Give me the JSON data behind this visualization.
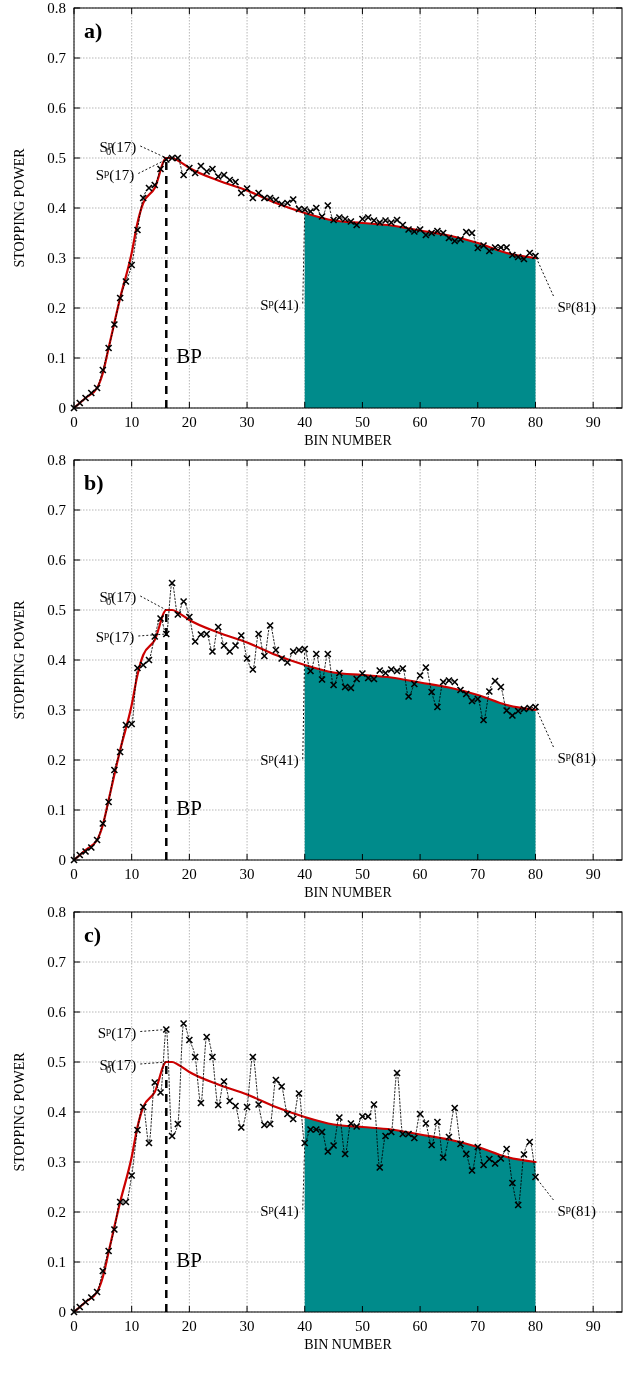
{
  "chart_data": [
    {
      "type": "line",
      "title": "a)",
      "xlabel": "BIN NUMBER",
      "ylabel": "STOPPING POWER",
      "xlim": [
        0,
        95
      ],
      "xticks": [
        0,
        10,
        20,
        30,
        40,
        50,
        60,
        70,
        80,
        90
      ],
      "ylim": [
        0,
        0.8
      ],
      "yticks": [
        0,
        0.1,
        0.2,
        0.3,
        0.4,
        0.5,
        0.6,
        0.7,
        0.8
      ],
      "grid": true,
      "series": [
        {
          "type": "area",
          "color": "#008b8b",
          "x": [
            40,
            45,
            50,
            55,
            60,
            65,
            70,
            75,
            80
          ],
          "values": [
            0.39,
            0.375,
            0.37,
            0.365,
            0.355,
            0.345,
            0.33,
            0.31,
            0.3
          ]
        },
        {
          "type": "line",
          "color": "#cc0000",
          "line_style": "solid",
          "marker": "none",
          "x": [
            0,
            2,
            4,
            5,
            6,
            8,
            10,
            11,
            12,
            14,
            16,
            17,
            18,
            20,
            25,
            30,
            35,
            40,
            45,
            50,
            55,
            60,
            65,
            70,
            75,
            80
          ],
          "values": [
            0,
            0.02,
            0.04,
            0.07,
            0.12,
            0.22,
            0.31,
            0.37,
            0.41,
            0.44,
            0.5,
            0.5,
            0.495,
            0.48,
            0.455,
            0.435,
            0.41,
            0.39,
            0.375,
            0.37,
            0.365,
            0.355,
            0.345,
            0.33,
            0.31,
            0.3
          ]
        },
        {
          "type": "line",
          "color": "#000000",
          "line_style": "dotted",
          "marker": "cross",
          "x": [
            0,
            1,
            2,
            3,
            4,
            5,
            6,
            7,
            8,
            9,
            10,
            11,
            12,
            13,
            14,
            15,
            16,
            17,
            18,
            19,
            20,
            21,
            22,
            23,
            24,
            25,
            26,
            27,
            28,
            29,
            30,
            31,
            32,
            33,
            34,
            35,
            36,
            37,
            38,
            39,
            40,
            41,
            42,
            43,
            44,
            45,
            46,
            47,
            48,
            49,
            50,
            51,
            52,
            53,
            54,
            55,
            56,
            57,
            58,
            59,
            60,
            61,
            62,
            63,
            64,
            65,
            66,
            67,
            68,
            69,
            70,
            71,
            72,
            73,
            74,
            75,
            76,
            77,
            78,
            79,
            80
          ],
          "values": [
            0,
            0.01,
            0.02,
            0.03,
            0.04,
            0.076,
            0.12,
            0.167,
            0.22,
            0.253,
            0.286,
            0.356,
            0.42,
            0.44,
            0.446,
            0.478,
            0.497,
            0.5,
            0.5,
            0.466,
            0.48,
            0.47,
            0.484,
            0.473,
            0.478,
            0.463,
            0.466,
            0.456,
            0.452,
            0.43,
            0.439,
            0.42,
            0.43,
            0.42,
            0.42,
            0.416,
            0.408,
            0.41,
            0.417,
            0.398,
            0.397,
            0.393,
            0.4,
            0.383,
            0.405,
            0.376,
            0.381,
            0.378,
            0.373,
            0.366,
            0.378,
            0.381,
            0.375,
            0.371,
            0.375,
            0.371,
            0.376,
            0.366,
            0.357,
            0.353,
            0.357,
            0.346,
            0.35,
            0.354,
            0.35,
            0.34,
            0.334,
            0.337,
            0.352,
            0.35,
            0.32,
            0.325,
            0.314,
            0.321,
            0.321,
            0.321,
            0.306,
            0.302,
            0.298,
            0.31,
            0.304
          ]
        }
      ],
      "ref_lines": [
        {
          "axis": "x",
          "value": 16,
          "label": "BP",
          "line_style": "dashed",
          "color": "#000000"
        }
      ],
      "annotations": [
        {
          "text": "S$^{p}$$_{0}$(17)",
          "x": 16,
          "y": 0.5
        },
        {
          "text": "S$^{p}$(17)",
          "x": 16,
          "y": 0.497
        },
        {
          "text": "S$^{p}$(41)",
          "x": 40,
          "y": 0.397
        },
        {
          "text": "S$^{p}$(81)",
          "x": 80,
          "y": 0.304
        }
      ]
    },
    {
      "type": "line",
      "title": "b)",
      "xlabel": "BIN NUMBER",
      "ylabel": "STOPPING POWER",
      "xlim": [
        0,
        95
      ],
      "xticks": [
        0,
        10,
        20,
        30,
        40,
        50,
        60,
        70,
        80,
        90
      ],
      "ylim": [
        0,
        0.8
      ],
      "yticks": [
        0,
        0.1,
        0.2,
        0.3,
        0.4,
        0.5,
        0.6,
        0.7,
        0.8
      ],
      "grid": true,
      "series": [
        {
          "type": "area",
          "color": "#008b8b",
          "x": [
            40,
            45,
            50,
            55,
            60,
            65,
            70,
            75,
            80
          ],
          "values": [
            0.39,
            0.375,
            0.37,
            0.365,
            0.355,
            0.345,
            0.33,
            0.31,
            0.3
          ]
        },
        {
          "type": "line",
          "color": "#cc0000",
          "line_style": "solid",
          "marker": "none",
          "x": [
            0,
            2,
            4,
            5,
            6,
            8,
            10,
            11,
            12,
            14,
            16,
            17,
            18,
            20,
            25,
            30,
            35,
            40,
            45,
            50,
            55,
            60,
            65,
            70,
            75,
            80
          ],
          "values": [
            0,
            0.02,
            0.04,
            0.07,
            0.12,
            0.22,
            0.31,
            0.37,
            0.41,
            0.44,
            0.5,
            0.5,
            0.495,
            0.48,
            0.455,
            0.435,
            0.41,
            0.39,
            0.375,
            0.37,
            0.365,
            0.355,
            0.345,
            0.33,
            0.31,
            0.3
          ]
        },
        {
          "type": "line",
          "color": "#000000",
          "line_style": "dotted",
          "marker": "cross",
          "x": [
            0,
            1,
            2,
            3,
            4,
            5,
            6,
            7,
            8,
            9,
            10,
            11,
            12,
            13,
            14,
            15,
            16,
            17,
            18,
            19,
            20,
            21,
            22,
            23,
            24,
            25,
            26,
            27,
            28,
            29,
            30,
            31,
            32,
            33,
            34,
            35,
            36,
            37,
            38,
            39,
            40,
            41,
            42,
            43,
            44,
            45,
            46,
            47,
            48,
            49,
            50,
            51,
            52,
            53,
            54,
            55,
            56,
            57,
            58,
            59,
            60,
            61,
            62,
            63,
            64,
            65,
            66,
            67,
            68,
            69,
            70,
            71,
            72,
            73,
            74,
            75,
            76,
            77,
            78,
            79,
            80
          ],
          "values": [
            0,
            0.01,
            0.017,
            0.025,
            0.04,
            0.073,
            0.116,
            0.18,
            0.216,
            0.27,
            0.272,
            0.384,
            0.39,
            0.4,
            0.447,
            0.483,
            0.452,
            0.554,
            0.491,
            0.517,
            0.486,
            0.437,
            0.451,
            0.452,
            0.417,
            0.466,
            0.429,
            0.417,
            0.429,
            0.449,
            0.403,
            0.381,
            0.452,
            0.408,
            0.469,
            0.42,
            0.403,
            0.395,
            0.417,
            0.42,
            0.422,
            0.378,
            0.412,
            0.361,
            0.412,
            0.35,
            0.374,
            0.346,
            0.344,
            0.362,
            0.373,
            0.364,
            0.362,
            0.379,
            0.374,
            0.381,
            0.378,
            0.383,
            0.327,
            0.352,
            0.369,
            0.385,
            0.336,
            0.306,
            0.356,
            0.359,
            0.356,
            0.34,
            0.332,
            0.318,
            0.322,
            0.28,
            0.337,
            0.358,
            0.346,
            0.299,
            0.289,
            0.298,
            0.302,
            0.304,
            0.306
          ]
        }
      ],
      "ref_lines": [
        {
          "axis": "x",
          "value": 16,
          "label": "BP",
          "line_style": "dashed",
          "color": "#000000"
        }
      ],
      "annotations": [
        {
          "text": "S$^{p}$$_{0}$(17)",
          "x": 16,
          "y": 0.5
        },
        {
          "text": "S$^{p}$(17)",
          "x": 16,
          "y": 0.452
        },
        {
          "text": "S$^{p}$(41)",
          "x": 40,
          "y": 0.422
        },
        {
          "text": "S$^{p}$(81)",
          "x": 80,
          "y": 0.306
        }
      ]
    },
    {
      "type": "line",
      "title": "c)",
      "xlabel": "BIN NUMBER",
      "ylabel": "STOPPING POWER",
      "xlim": [
        0,
        95
      ],
      "xticks": [
        0,
        10,
        20,
        30,
        40,
        50,
        60,
        70,
        80,
        90
      ],
      "ylim": [
        0,
        0.8
      ],
      "yticks": [
        0,
        0.1,
        0.2,
        0.3,
        0.4,
        0.5,
        0.6,
        0.7,
        0.8
      ],
      "grid": true,
      "series": [
        {
          "type": "area",
          "color": "#008b8b",
          "x": [
            40,
            45,
            50,
            55,
            60,
            65,
            70,
            75,
            80
          ],
          "values": [
            0.39,
            0.375,
            0.37,
            0.365,
            0.355,
            0.345,
            0.33,
            0.31,
            0.3
          ]
        },
        {
          "type": "line",
          "color": "#cc0000",
          "line_style": "solid",
          "marker": "none",
          "x": [
            0,
            2,
            4,
            5,
            6,
            8,
            10,
            11,
            12,
            14,
            16,
            17,
            18,
            20,
            25,
            30,
            35,
            40,
            45,
            50,
            55,
            60,
            65,
            70,
            75,
            80
          ],
          "values": [
            0,
            0.02,
            0.04,
            0.07,
            0.12,
            0.22,
            0.31,
            0.37,
            0.41,
            0.44,
            0.5,
            0.5,
            0.495,
            0.48,
            0.455,
            0.435,
            0.41,
            0.39,
            0.375,
            0.37,
            0.365,
            0.355,
            0.345,
            0.33,
            0.31,
            0.3
          ]
        },
        {
          "type": "line",
          "color": "#000000",
          "line_style": "dotted",
          "marker": "cross",
          "x": [
            0,
            1,
            2,
            3,
            4,
            5,
            6,
            7,
            8,
            9,
            10,
            11,
            12,
            13,
            14,
            15,
            16,
            17,
            18,
            19,
            20,
            21,
            22,
            23,
            24,
            25,
            26,
            27,
            28,
            29,
            30,
            31,
            32,
            33,
            34,
            35,
            36,
            37,
            38,
            39,
            40,
            41,
            42,
            43,
            44,
            45,
            46,
            47,
            48,
            49,
            50,
            51,
            52,
            53,
            54,
            55,
            56,
            57,
            58,
            59,
            60,
            61,
            62,
            63,
            64,
            65,
            66,
            67,
            68,
            69,
            70,
            71,
            72,
            73,
            74,
            75,
            76,
            77,
            78,
            79,
            80
          ],
          "values": [
            0,
            0.01,
            0.02,
            0.029,
            0.04,
            0.082,
            0.122,
            0.165,
            0.22,
            0.22,
            0.273,
            0.364,
            0.41,
            0.338,
            0.459,
            0.439,
            0.565,
            0.352,
            0.376,
            0.577,
            0.544,
            0.51,
            0.418,
            0.55,
            0.51,
            0.414,
            0.461,
            0.422,
            0.412,
            0.369,
            0.41,
            0.51,
            0.415,
            0.374,
            0.376,
            0.464,
            0.451,
            0.396,
            0.386,
            0.437,
            0.338,
            0.365,
            0.365,
            0.36,
            0.321,
            0.333,
            0.389,
            0.316,
            0.377,
            0.371,
            0.391,
            0.391,
            0.415,
            0.289,
            0.352,
            0.36,
            0.478,
            0.356,
            0.356,
            0.348,
            0.396,
            0.377,
            0.334,
            0.38,
            0.309,
            0.35,
            0.408,
            0.336,
            0.316,
            0.283,
            0.33,
            0.294,
            0.306,
            0.297,
            0.307,
            0.326,
            0.258,
            0.214,
            0.315,
            0.34,
            0.27
          ]
        }
      ],
      "ref_lines": [
        {
          "axis": "x",
          "value": 16,
          "label": "BP",
          "line_style": "dashed",
          "color": "#000000"
        }
      ],
      "annotations": [
        {
          "text": "S$^{p}$(17)",
          "x": 16,
          "y": 0.565
        },
        {
          "text": "S$^{p}$$_{0}$(17)",
          "x": 16,
          "y": 0.5
        },
        {
          "text": "S$^{p}$(41)",
          "x": 40,
          "y": 0.337
        },
        {
          "text": "S$^{p}$(81)",
          "x": 80,
          "y": 0.27
        }
      ]
    }
  ]
}
